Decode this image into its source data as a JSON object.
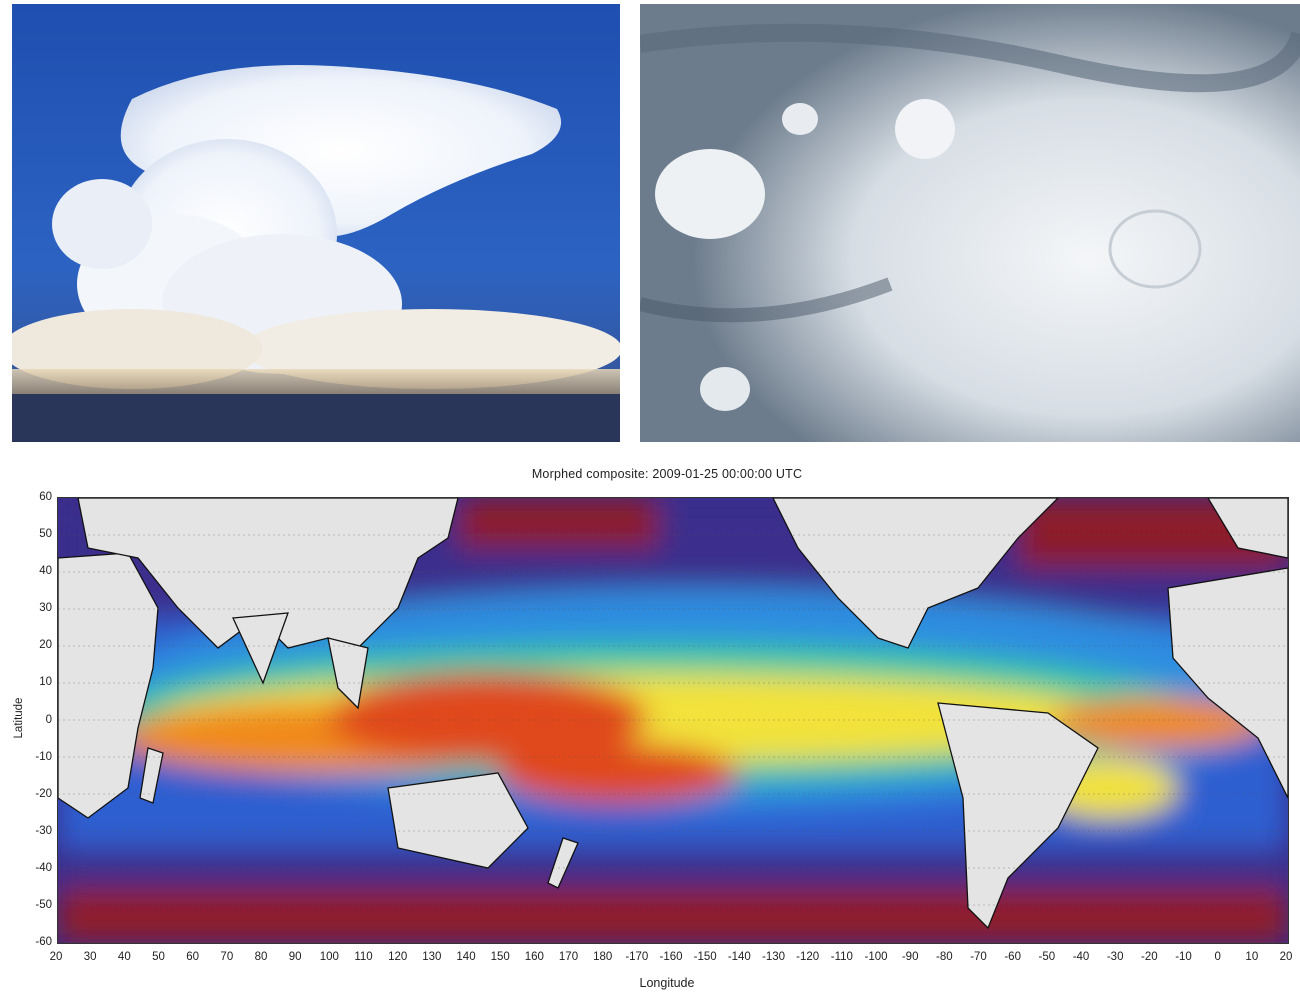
{
  "figure": {
    "photo_left": "cumulonimbus-anvil-cloud-photo",
    "photo_right": "satellite-convective-clouds-photo"
  },
  "map": {
    "title": "Morphed composite: 2009-01-25 00:00:00 UTC",
    "xlabel": "Longitude",
    "ylabel": "Latitude",
    "y_ticks": [
      "60",
      "50",
      "40",
      "30",
      "20",
      "10",
      "0",
      "-10",
      "-20",
      "-30",
      "-40",
      "-50",
      "-60"
    ],
    "x_ticks": [
      "20",
      "30",
      "40",
      "50",
      "60",
      "70",
      "80",
      "90",
      "100",
      "110",
      "120",
      "130",
      "140",
      "150",
      "160",
      "170",
      "180",
      "-170",
      "-160",
      "-150",
      "-140",
      "-130",
      "-120",
      "-110",
      "-100",
      "-90",
      "-80",
      "-70",
      "-60",
      "-50",
      "-40",
      "-30",
      "-20",
      "-10",
      "0",
      "10",
      "20"
    ],
    "colors": {
      "land": "#e4e4e4",
      "dry": "#3a2d8c",
      "moist": "#c23a18",
      "very_moist": "#e0231a"
    }
  }
}
